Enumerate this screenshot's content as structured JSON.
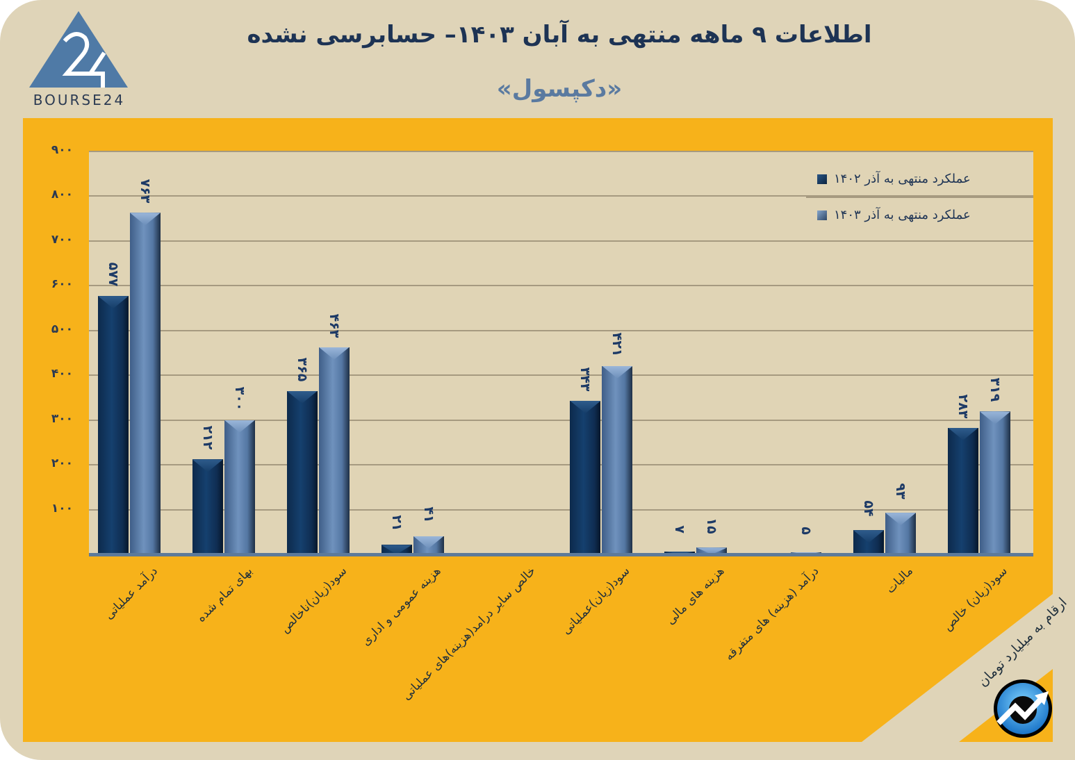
{
  "header": {
    "title": "اطلاعات ۹ ماهه منتهی به آبان  ۱۴۰۳– حسابرسی نشده",
    "subtitle": "«دکپسول»",
    "logo_text": "BOURSE24",
    "logo_icon": "bourse24-triangle-logo"
  },
  "colors": {
    "frame_bg": "#dfd4b8",
    "panel_bg": "#f7b21a",
    "plot_bg": "#e0d4b5",
    "series_1402": "#15406e",
    "series_1403": "#5f82ae",
    "title": "#1d3354",
    "subtitle": "#5a7aa0"
  },
  "legend": {
    "items": [
      {
        "label": "عملکرد منتهی به آذر ۱۴۰۲",
        "color": "#15406e"
      },
      {
        "label": "عملکرد منتهی به آذر ۱۴۰۳",
        "color": "#5f82ae"
      }
    ]
  },
  "footer": {
    "unit_note": "ارقام به میلیارد تومان",
    "badge_icon": "trend-arrow-icon"
  },
  "yaxis": {
    "ticks": [
      "۱۰۰",
      "۲۰۰",
      "۳۰۰",
      "۴۰۰",
      "۵۰۰",
      "۶۰۰",
      "۷۰۰",
      "۸۰۰",
      "۹۰۰"
    ]
  },
  "bars": [
    {
      "category": "درآمد عملیاتی",
      "v1": 577,
      "l1": "۵۷۷",
      "v2": 763,
      "l2": "۷۶۳"
    },
    {
      "category": "بهای تمام شده",
      "v1": 212,
      "l1": "۲۱۲",
      "v2": 300,
      "l2": "۳۰۰"
    },
    {
      "category": "سود(زیان)ناخالص",
      "v1": 365,
      "l1": "۳۶۵",
      "v2": 463,
      "l2": "۴۶۳"
    },
    {
      "category": "هزینه عمومی و اداری",
      "v1": 21,
      "l1": "۲۱",
      "v2": 41,
      "l2": "۴۱"
    },
    {
      "category": "خالص سایر درامد(هزینه)های عملیاتی",
      "v1": 0,
      "l1": "",
      "v2": 0,
      "l2": ""
    },
    {
      "category": "سود(زیان)عملیاتی",
      "v1": 343,
      "l1": "۳۴۳",
      "v2": 421,
      "l2": "۴۲۱"
    },
    {
      "category": "هزینه های مالی",
      "v1": 7,
      "l1": "۷",
      "v2": 15,
      "l2": "۱۵"
    },
    {
      "category": "درآمد (هزینه) های متفرقه",
      "v1": 0,
      "l1": "",
      "v2": 5,
      "l2": "۵"
    },
    {
      "category": "مالیات",
      "v1": 54,
      "l1": "۵۴",
      "v2": 93,
      "l2": "۹۳"
    },
    {
      "category": "سود(زیان) خالص",
      "v1": 283,
      "l1": "۲۸۳",
      "v2": 319,
      "l2": "۳۱۹"
    }
  ],
  "chart_data": {
    "type": "bar",
    "title": "اطلاعات ۹ ماهه منتهی به آبان ۱۴۰۳– حسابرسی نشده",
    "subtitle": "«دکپسول»",
    "categories": [
      "درآمد عملیاتی",
      "بهای تمام شده",
      "سود(زیان)ناخالص",
      "هزینه عمومی و اداری",
      "خالص سایر درامد(هزینه)های عملیاتی",
      "سود(زیان)عملیاتی",
      "هزینه های مالی",
      "درآمد (هزینه) های متفرقه",
      "مالیات",
      "سود(زیان) خالص"
    ],
    "series": [
      {
        "name": "عملکرد منتهی به آذر ۱۴۰۲",
        "values": [
          577,
          212,
          365,
          21,
          0,
          343,
          7,
          0,
          54,
          283
        ]
      },
      {
        "name": "عملکرد منتهی به آذر ۱۴۰۳",
        "values": [
          763,
          300,
          463,
          41,
          0,
          421,
          15,
          5,
          93,
          319
        ]
      }
    ],
    "xlabel": "",
    "ylabel": "",
    "unit": "ارقام به میلیارد تومان",
    "ylim": [
      0,
      900
    ],
    "yticks": [
      100,
      200,
      300,
      400,
      500,
      600,
      700,
      800,
      900
    ],
    "grid": true,
    "legend_position": "top-right"
  }
}
